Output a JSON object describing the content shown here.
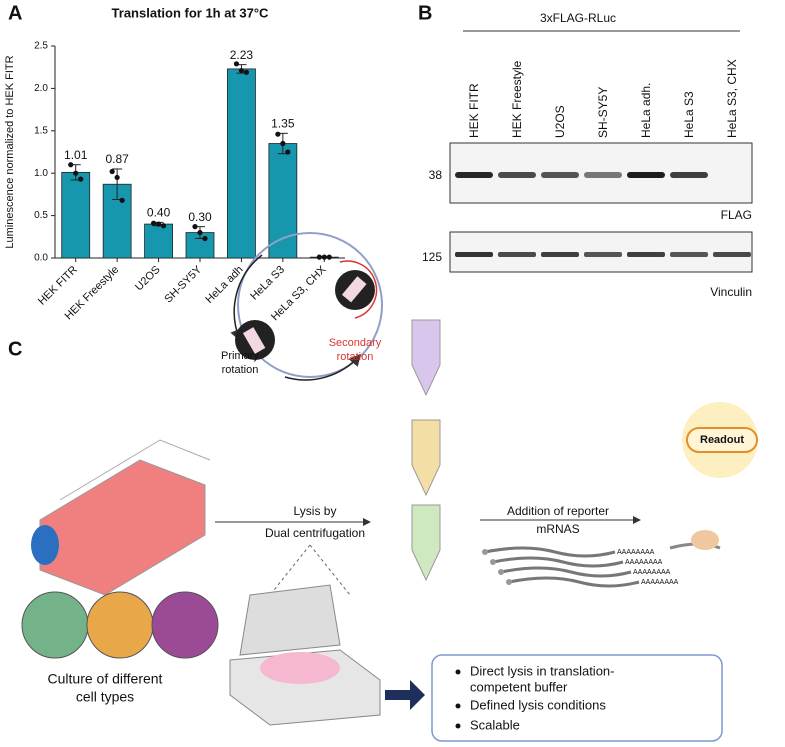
{
  "panel_labels": [
    "A",
    "B",
    "C"
  ],
  "chart_data": {
    "type": "bar",
    "title": "Translation for 1h at 37°C",
    "ylabel": "Luminescence normalized to HEK  FITR",
    "categories": [
      "HEK FITR",
      "HEK Freestyle",
      "U2OS",
      "SH-SY5Y",
      "HeLa adh",
      "HeLa S3",
      "HeLa S3, CHX"
    ],
    "values": [
      1.01,
      0.87,
      0.4,
      0.3,
      2.23,
      1.35,
      0.01
    ],
    "value_labels": [
      "1.01",
      "0.87",
      "0.40",
      "0.30",
      "2.23",
      "1.35",
      null
    ],
    "errors": [
      0.09,
      0.18,
      0.02,
      0.07,
      0.05,
      0.12,
      0.01
    ],
    "replicates": [
      [
        1.1,
        1.0,
        0.93
      ],
      [
        1.02,
        0.95,
        0.68
      ],
      [
        0.41,
        0.4,
        0.38
      ],
      [
        0.37,
        0.3,
        0.23
      ],
      [
        2.29,
        2.21,
        2.19
      ],
      [
        1.46,
        1.35,
        1.25
      ],
      [
        0.01,
        0.01,
        0.01
      ]
    ],
    "color": "#1797ad",
    "ylim": [
      0,
      2.5
    ],
    "yticks": [
      {
        "value": 0,
        "label": "0.0"
      },
      0.5,
      {
        "value": 1,
        "label": "1.0"
      },
      1.5,
      {
        "value": 2,
        "label": "2.0"
      },
      2.5
    ]
  },
  "blot": {
    "header": "3xFLAG-RLuc",
    "lanes": [
      "HEK FITR",
      "HEK Freestyle",
      "U2OS",
      "SH-SY5Y",
      "HeLa adh.",
      "HeLa S3",
      "HeLa S3, CHX"
    ],
    "markers": [
      "38",
      "125"
    ],
    "antibodies": [
      "FLAG",
      "Vinculin"
    ]
  },
  "schematic": {
    "primary": [
      "Primary",
      "rotation"
    ],
    "secondary": [
      "Secondary",
      "rotation"
    ],
    "lysis": [
      "Lysis by",
      "Dual centrifugation"
    ],
    "addition": [
      "Addition of reporter",
      "mRNAS"
    ],
    "readout": "Readout",
    "culture": [
      "Culture of different",
      "cell types"
    ],
    "polya": "AAAAAAAA",
    "bullets": [
      "Direct lysis in translation-",
      "competent buffer",
      "Defined lysis conditions",
      "Scalable"
    ]
  }
}
